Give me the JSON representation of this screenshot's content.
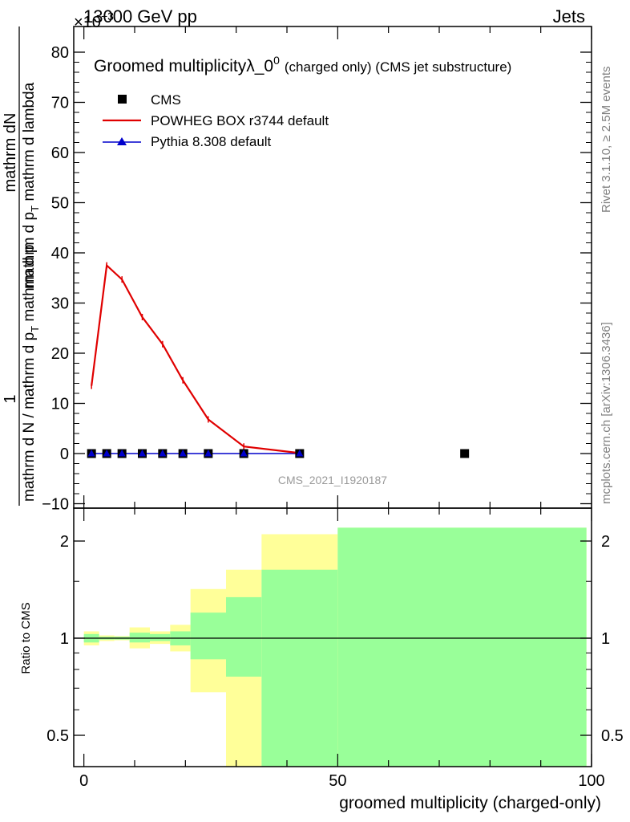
{
  "header": {
    "left": "13000 GeV pp",
    "right": "Jets",
    "exponent": "×10",
    "exponent_power": "−3"
  },
  "side_labels": {
    "top": "Rivet 3.1.10, ≥ 2.5M events",
    "bottom": "mcplots.cern.ch [arXiv:1306.3436]"
  },
  "watermark": "CMS_2021_I1920187",
  "colors": {
    "powheg": "#e00000",
    "pythia": "#0000cc",
    "cms": "#000000",
    "band_inner": "#99ff99",
    "band_outer": "#ffff99"
  },
  "chart_data": [
    {
      "type": "line",
      "title_main": "Groomed multiplicityλ_0",
      "title_sup": "0",
      "title_sub": "(charged only) (CMS jet substructure)",
      "ylabel_num": "mathrm dN",
      "ylabel_frac_prefix": "1",
      "ylabel_den": "mathrm d p",
      "ylabel_den_sub": "T",
      "ylabel_den_end": " mathrm d lambda",
      "ylabel_left": "mathrm d N / mathrm d p",
      "ylabel_left_sub": "T",
      "ylabel_left_end": " mathrm d p",
      "ylim": [
        -10,
        85
      ],
      "yticks": [
        -10,
        0,
        10,
        20,
        30,
        40,
        50,
        60,
        70,
        80
      ],
      "ytick_labels": [
        "−10",
        "0",
        "10",
        "20",
        "30",
        "40",
        "50",
        "60",
        "70",
        "80"
      ],
      "xlim": [
        -2,
        100
      ],
      "series": [
        {
          "name": "CMS",
          "marker": "square",
          "x": [
            1.5,
            4.5,
            7.5,
            11.5,
            15.5,
            19.5,
            24.5,
            31.5,
            42.5,
            75
          ],
          "y": [
            0,
            0,
            0,
            0,
            0,
            0,
            0,
            0,
            0,
            0
          ]
        },
        {
          "name": "POWHEG BOX r3744 default",
          "marker": "line",
          "x": [
            1.5,
            4.5,
            7.5,
            11.5,
            15.5,
            19.5,
            24.5,
            31.5,
            42.5
          ],
          "y": [
            13.5,
            37.5,
            34.7,
            27.2,
            21.8,
            14.6,
            6.8,
            1.4,
            0.1
          ]
        },
        {
          "name": "Pythia 8.308 default",
          "marker": "triangle",
          "x": [
            1.5,
            4.5,
            7.5,
            11.5,
            15.5,
            19.5,
            24.5,
            31.5,
            42.5
          ],
          "y": [
            0,
            0,
            0,
            0,
            0,
            0,
            0,
            0,
            0
          ]
        }
      ],
      "legend_position": "top-left"
    },
    {
      "type": "area",
      "ylabel": "Ratio to CMS",
      "xlabel": "groomed multiplicity (charged-only)",
      "xlim": [
        -2,
        100
      ],
      "ylim": [
        0.4,
        2.2
      ],
      "y_scale": "log",
      "xticks": [
        0,
        50,
        100
      ],
      "xtick_labels": [
        "0",
        "50",
        "100"
      ],
      "yticks": [
        0.5,
        1,
        2
      ],
      "ytick_labels": [
        "0.5",
        "1",
        "2"
      ],
      "reference": 1,
      "bins": [
        {
          "lo": 0,
          "hi": 3,
          "inner": [
            0.97,
            1.03
          ],
          "outer": [
            0.95,
            1.05
          ]
        },
        {
          "lo": 3,
          "hi": 6,
          "inner": [
            0.99,
            1.01
          ],
          "outer": [
            0.98,
            1.02
          ]
        },
        {
          "lo": 6,
          "hi": 9,
          "inner": [
            0.99,
            1.01
          ],
          "outer": [
            0.985,
            1.015
          ]
        },
        {
          "lo": 9,
          "hi": 13,
          "inner": [
            0.97,
            1.04
          ],
          "outer": [
            0.93,
            1.08
          ]
        },
        {
          "lo": 13,
          "hi": 17,
          "inner": [
            0.98,
            1.03
          ],
          "outer": [
            0.96,
            1.05
          ]
        },
        {
          "lo": 17,
          "hi": 21,
          "inner": [
            0.95,
            1.05
          ],
          "outer": [
            0.91,
            1.1
          ]
        },
        {
          "lo": 21,
          "hi": 28,
          "inner": [
            0.86,
            1.2
          ],
          "outer": [
            0.68,
            1.42
          ]
        },
        {
          "lo": 28,
          "hi": 35,
          "inner": [
            0.76,
            1.34
          ],
          "outer": [
            0.37,
            1.63
          ]
        },
        {
          "lo": 35,
          "hi": 50,
          "inner": [
            0.38,
            1.63
          ],
          "outer": [
            0.36,
            2.1
          ]
        },
        {
          "lo": 50,
          "hi": 99,
          "inner": [
            0.36,
            2.2
          ],
          "outer": [
            0.36,
            2.2
          ]
        }
      ]
    }
  ]
}
